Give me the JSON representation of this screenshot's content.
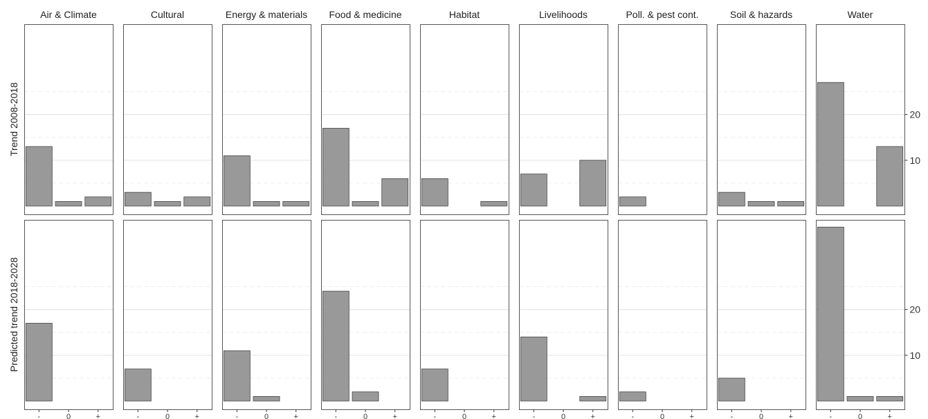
{
  "chart_data": {
    "type": "bar",
    "facets_columns": [
      "Air & Climate",
      "Cultural",
      "Energy & materials",
      "Food & medicine",
      "Habitat",
      "Livelihoods",
      "Poll. & pest cont.",
      "Soil & hazards",
      "Water"
    ],
    "facets_rows": [
      "Trend 2008-2018",
      "Predicted trend 2018-2028"
    ],
    "categories": [
      "-",
      "0",
      "+"
    ],
    "y_ticks": [
      10,
      20
    ],
    "ylim": [
      0,
      27.5
    ],
    "grid": true,
    "bar_color": "#999999",
    "panels": [
      {
        "row": "Trend 2008-2018",
        "values": {
          "Air & Climate": [
            13,
            1,
            2
          ],
          "Cultural": [
            3,
            1,
            2
          ],
          "Energy & materials": [
            11,
            1,
            1
          ],
          "Food & medicine": [
            17,
            1,
            6
          ],
          "Habitat": [
            6,
            0,
            1
          ],
          "Livelihoods": [
            7,
            0,
            10
          ],
          "Poll. & pest cont.": [
            2,
            0,
            0
          ],
          "Soil & hazards": [
            3,
            1,
            1
          ],
          "Water": [
            27,
            0,
            13
          ]
        }
      },
      {
        "row": "Predicted trend 2018-2028",
        "values": {
          "Air & Climate": [
            17,
            0,
            0
          ],
          "Cultural": [
            7,
            0,
            0
          ],
          "Energy & materials": [
            11,
            1,
            0
          ],
          "Food & medicine": [
            24,
            2,
            0
          ],
          "Habitat": [
            7,
            0,
            0
          ],
          "Livelihoods": [
            14,
            0,
            1
          ],
          "Poll. & pest cont.": [
            2,
            0,
            0
          ],
          "Soil & hazards": [
            5,
            0,
            0
          ],
          "Water": [
            38,
            1,
            1
          ]
        }
      }
    ]
  }
}
